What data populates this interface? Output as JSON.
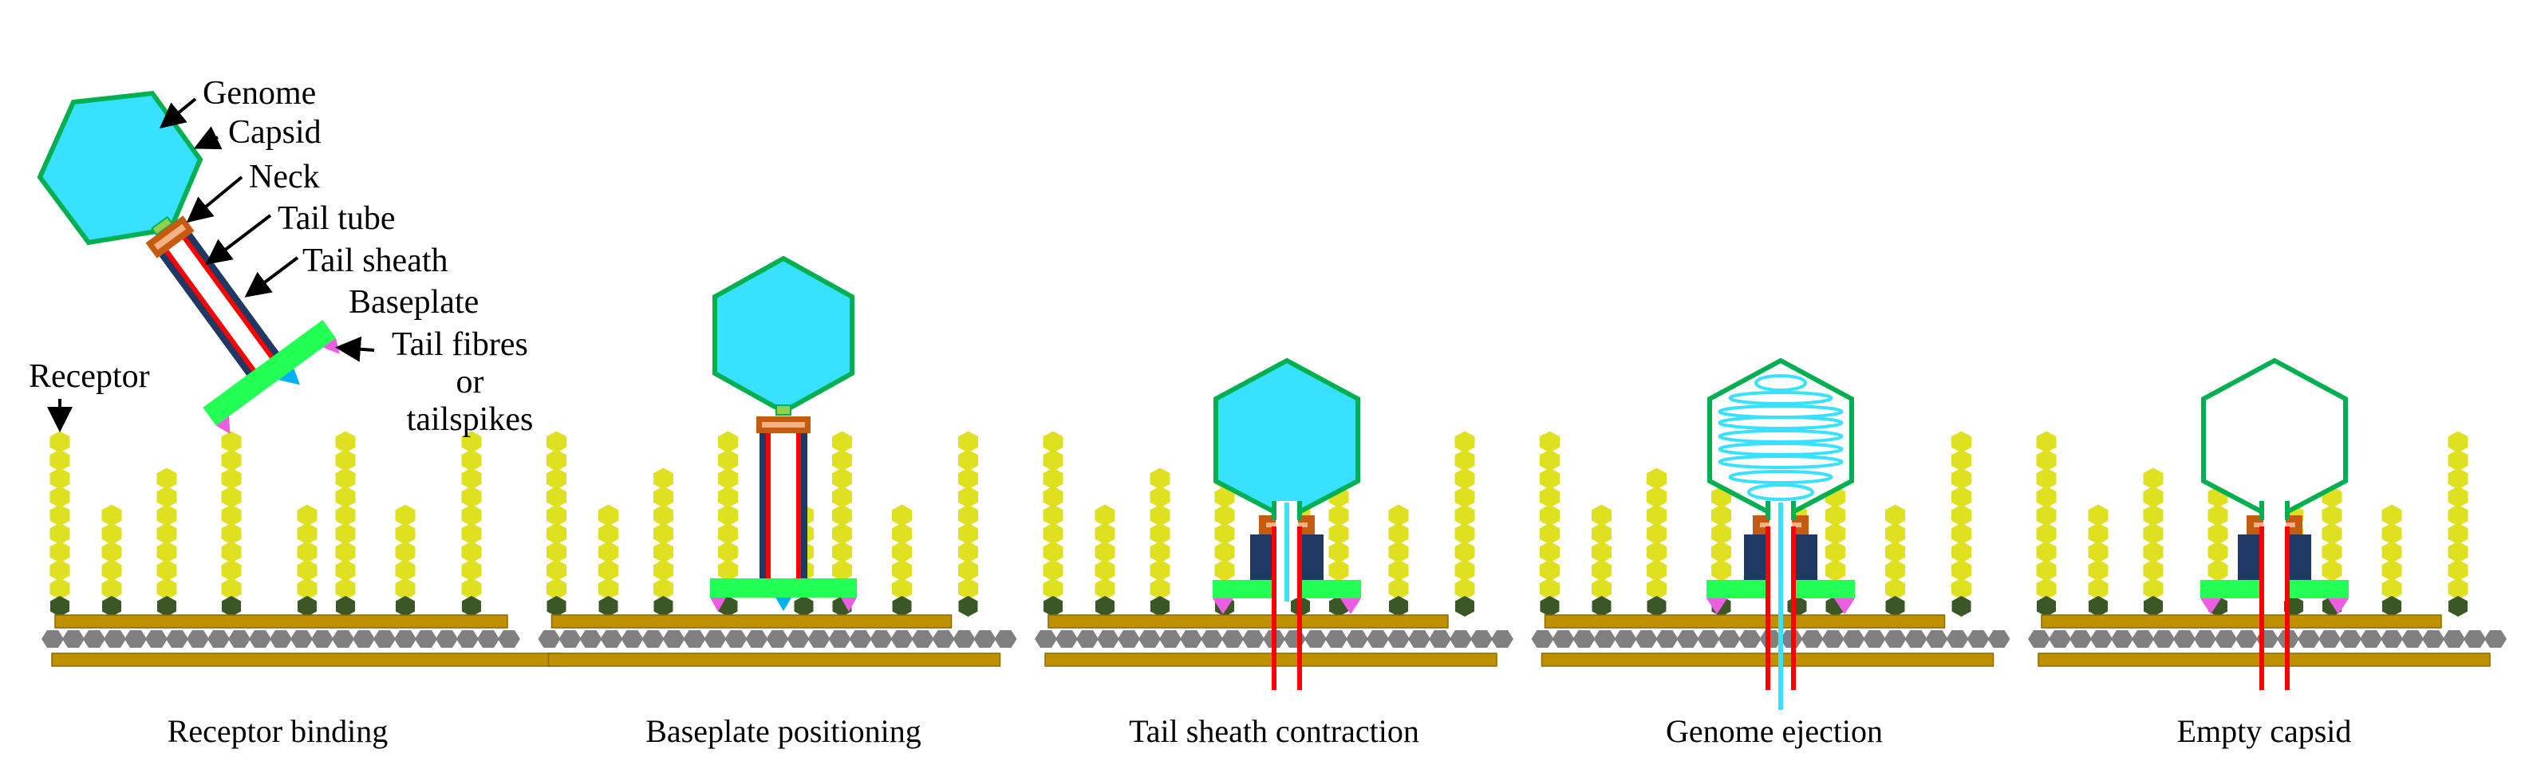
{
  "part_labels": {
    "genome": "Genome",
    "capsid": "Capsid",
    "neck": "Neck",
    "tail_tube": "Tail tube",
    "tail_sheath": "Tail sheath",
    "baseplate": "Baseplate",
    "tail_fibres": "Tail fibres",
    "or": "or",
    "tailspikes": "tailspikes",
    "receptor": "Receptor"
  },
  "steps": [
    {
      "caption": "Receptor binding"
    },
    {
      "caption": "Baseplate positioning"
    },
    {
      "caption": "Tail sheath contraction"
    },
    {
      "caption": "Genome ejection"
    },
    {
      "caption": "Empty capsid"
    }
  ],
  "colors": {
    "capsid_fill": "#38e1ff",
    "capsid_outline": "#00b050",
    "genome": "#38e1ff",
    "neck": "#c55a11",
    "neck_stripe": "#f4b183",
    "tail_sheath": "#203864",
    "tail_tube": "#ff0000",
    "baseplate": "#22ff55",
    "tail_fibre": "#ea5fe0",
    "tail_tip": "#00b0f0",
    "receptor": "#dfe020",
    "receptor_anchor": "#3a5725",
    "membrane_bar": "#bf9000",
    "membrane_core": "#808080"
  }
}
